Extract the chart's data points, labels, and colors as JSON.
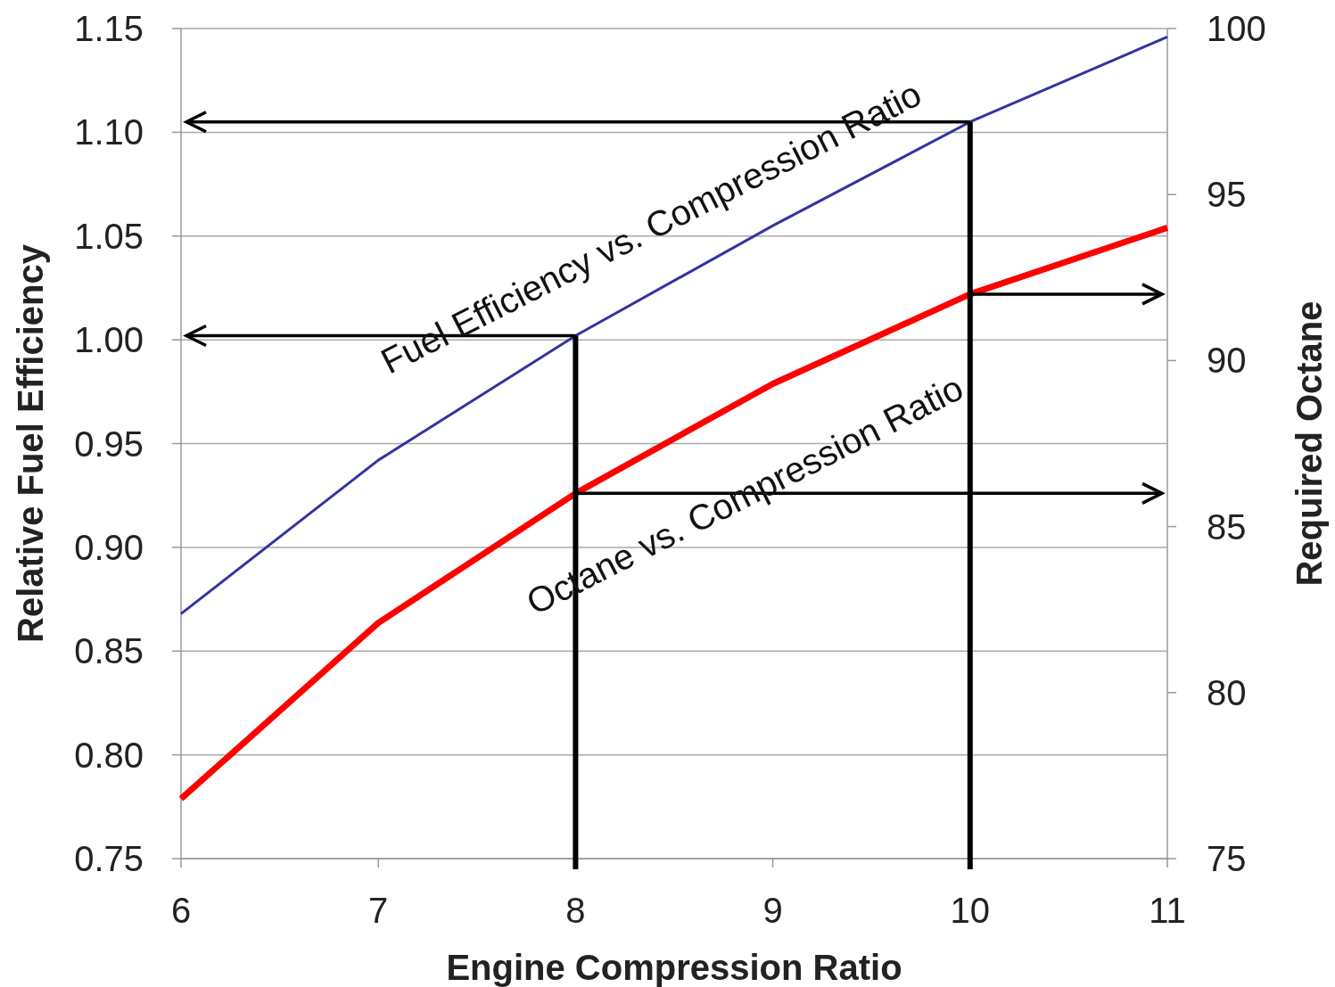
{
  "chart_data": {
    "type": "line",
    "xlabel": "Engine Compression Ratio",
    "ylabel": "Relative Fuel Efficiency",
    "y2label": "Required Octane",
    "x": [
      6,
      7,
      8,
      9,
      10,
      11
    ],
    "xlim": [
      6,
      11
    ],
    "xticks": [
      6,
      7,
      8,
      9,
      10,
      11
    ],
    "ylim": [
      0.75,
      1.15
    ],
    "yticks": [
      {
        "value": 0.75,
        "label": "0.75"
      },
      {
        "value": 0.8,
        "label": "0.80"
      },
      {
        "value": 0.85,
        "label": "0.85"
      },
      {
        "value": 0.9,
        "label": "0.90"
      },
      {
        "value": 0.95,
        "label": "0.95"
      },
      {
        "value": 1,
        "label": "1.00"
      },
      {
        "value": 1.05,
        "label": "1.05"
      },
      {
        "value": 1.1,
        "label": "1.10"
      },
      {
        "value": 1.15,
        "label": "1.15"
      }
    ],
    "y2lim": [
      75,
      100
    ],
    "y2ticks": [
      75,
      80,
      85,
      90,
      95,
      100
    ],
    "grid": "y",
    "marker": "none",
    "line_style": "solid",
    "series": [
      {
        "color": "#3333a0",
        "values": [
          0.868,
          0.942,
          1.002,
          1.055,
          1.105,
          1.146
        ]
      },
      {
        "color": "#ff0000",
        "axis": "y2",
        "values": [
          76.8,
          82.1,
          86.0,
          89.3,
          92.0,
          94.0
        ]
      }
    ],
    "ref_lines": [
      {
        "axis": "x",
        "value": 8
      },
      {
        "axis": "x",
        "value": 10
      }
    ],
    "annotations": [
      "Fuel Efficiency vs. Compression Ratio",
      "Octane vs. Compression Ratio"
    ]
  }
}
